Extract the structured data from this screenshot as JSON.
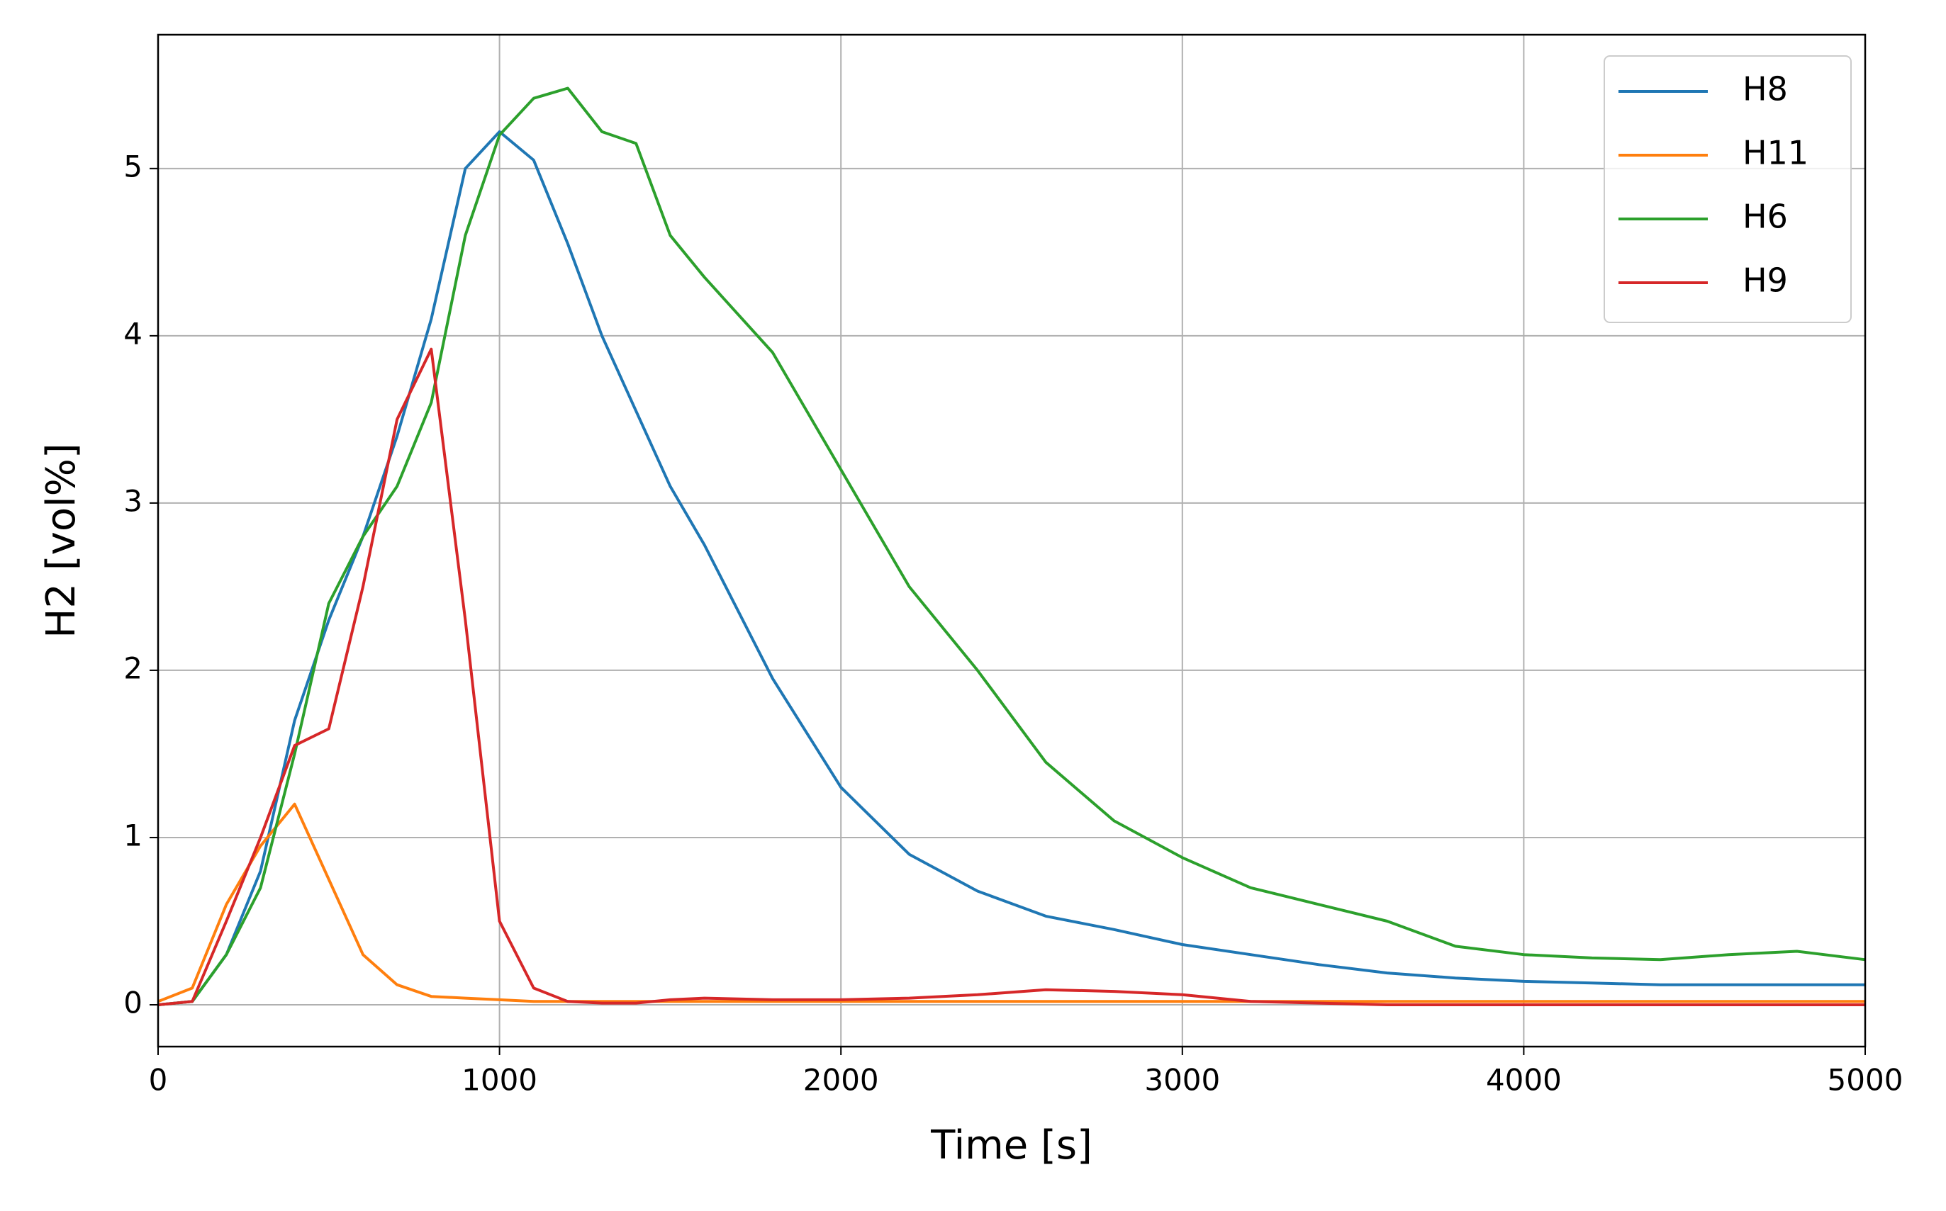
{
  "chart_data": {
    "type": "line",
    "xlabel": "Time [s]",
    "ylabel": "H2 [vol%]",
    "x": [
      0,
      100,
      200,
      300,
      400,
      500,
      600,
      700,
      800,
      900,
      1000,
      1100,
      1200,
      1300,
      1400,
      1500,
      1600,
      1800,
      2000,
      2200,
      2400,
      2600,
      2800,
      3000,
      3200,
      3400,
      3600,
      3800,
      4000,
      4200,
      4400,
      4600,
      4800,
      5000
    ],
    "series": [
      {
        "name": "H8",
        "color": "#1f77b4",
        "values": [
          0,
          0.02,
          0.3,
          0.8,
          1.7,
          2.3,
          2.8,
          3.4,
          4.1,
          5.0,
          5.22,
          5.05,
          4.55,
          4.0,
          3.55,
          3.1,
          2.75,
          1.95,
          1.3,
          0.9,
          0.68,
          0.53,
          0.45,
          0.36,
          0.3,
          0.24,
          0.19,
          0.16,
          0.14,
          0.13,
          0.12,
          0.12,
          0.12,
          0.12
        ]
      },
      {
        "name": "H11",
        "color": "#ff7f0e",
        "values": [
          0.02,
          0.1,
          0.6,
          0.95,
          1.2,
          0.75,
          0.3,
          0.12,
          0.05,
          0.04,
          0.03,
          0.02,
          0.02,
          0.02,
          0.02,
          0.02,
          0.02,
          0.02,
          0.02,
          0.02,
          0.02,
          0.02,
          0.02,
          0.02,
          0.02,
          0.02,
          0.02,
          0.02,
          0.02,
          0.02,
          0.02,
          0.02,
          0.02,
          0.02
        ]
      },
      {
        "name": "H6",
        "color": "#2ca02c",
        "values": [
          0,
          0.02,
          0.3,
          0.7,
          1.5,
          2.4,
          2.8,
          3.1,
          3.6,
          4.6,
          5.2,
          5.42,
          5.48,
          5.22,
          5.15,
          4.6,
          4.35,
          3.9,
          3.2,
          2.5,
          2.0,
          1.45,
          1.1,
          0.88,
          0.7,
          0.6,
          0.5,
          0.35,
          0.3,
          0.28,
          0.27,
          0.3,
          0.32,
          0.27
        ]
      },
      {
        "name": "H9",
        "color": "#d62728",
        "values": [
          0,
          0.02,
          0.5,
          1.0,
          1.55,
          1.65,
          2.5,
          3.5,
          3.92,
          2.3,
          0.5,
          0.1,
          0.02,
          0.01,
          0.01,
          0.03,
          0.04,
          0.03,
          0.03,
          0.04,
          0.06,
          0.09,
          0.08,
          0.06,
          0.02,
          0.01,
          0,
          0,
          0,
          0,
          0,
          0,
          0,
          0
        ]
      }
    ],
    "xlim": [
      0,
      5000
    ],
    "xticks": [
      0,
      1000,
      2000,
      3000,
      4000,
      5000
    ],
    "ylim": [
      -0.25,
      5.8
    ],
    "yticks": [
      0,
      1,
      2,
      3,
      4,
      5
    ],
    "grid": true,
    "legend": "upper right"
  }
}
